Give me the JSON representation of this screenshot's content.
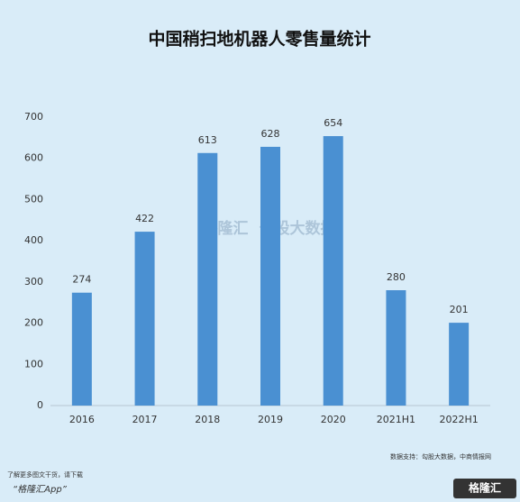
{
  "chart_data": {
    "type": "bar",
    "title": "中国稍扫地机器人零售量统计",
    "categories": [
      "2016",
      "2017",
      "2018",
      "2019",
      "2020",
      "2021H1",
      "2022H1"
    ],
    "values": [
      274,
      422,
      613,
      628,
      654,
      280,
      201
    ],
    "color": "#4a90d2",
    "ylim": [
      0,
      700
    ],
    "yticks": [
      0,
      100,
      200,
      300,
      400,
      500,
      600,
      700
    ],
    "grid": false,
    "source": "数据支持：勾股大数据，中商情报网",
    "watermark": [
      "格隆汇",
      "勾股大数据"
    ],
    "footer": [
      "了解更多图文干货，请下载",
      "“格隆汇App”"
    ],
    "logo": "格隆汇"
  }
}
